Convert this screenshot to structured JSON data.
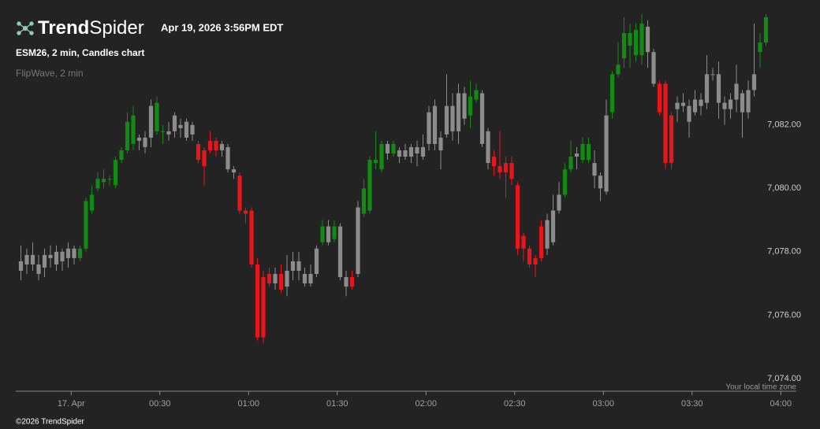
{
  "logo": [
    "Trend",
    "Spider"
  ],
  "timestamp": "Apr 19, 2026 3:56PM EDT",
  "chart_title": "ESM26, 2 min, Candles chart",
  "indicator": "FlipWave, 2 min",
  "timezone_note": "Your local time zone",
  "copyright": "©2026 TrendSpider",
  "chart_data": {
    "type": "candlestick",
    "x": [
      "23:42",
      "23:44",
      "23:46",
      "23:48",
      "23:50",
      "23:52",
      "23:54",
      "23:56",
      "23:58",
      "00:00",
      "00:02",
      "00:04",
      "00:06",
      "00:08",
      "00:10",
      "00:12",
      "00:14",
      "00:16",
      "00:18",
      "00:20",
      "00:22",
      "00:24",
      "00:26",
      "00:28",
      "00:30",
      "00:32",
      "00:34",
      "00:36",
      "00:38",
      "00:40",
      "00:42",
      "00:44",
      "00:46",
      "00:48",
      "00:50",
      "00:52",
      "00:54",
      "00:56",
      "00:58",
      "01:00",
      "01:02",
      "01:04",
      "01:06",
      "01:08",
      "01:10",
      "01:12",
      "01:14",
      "01:16",
      "01:18",
      "01:20",
      "01:22",
      "01:24",
      "01:26",
      "01:28",
      "01:30",
      "01:32",
      "01:34",
      "01:36",
      "01:38",
      "01:40",
      "01:42",
      "01:44",
      "01:46",
      "01:48",
      "01:50",
      "01:52",
      "01:54",
      "01:56",
      "01:58",
      "02:00",
      "02:02",
      "02:04",
      "02:06",
      "02:08",
      "02:10",
      "02:12",
      "02:14",
      "02:16",
      "02:18",
      "02:20",
      "02:22",
      "02:24",
      "02:26",
      "02:28",
      "02:30",
      "02:32",
      "02:34",
      "02:36",
      "02:38",
      "02:40",
      "02:42",
      "02:44",
      "02:46",
      "02:48",
      "02:50",
      "02:52",
      "02:54",
      "02:56",
      "02:58",
      "03:00",
      "03:02",
      "03:04",
      "03:06",
      "03:08",
      "03:10",
      "03:12",
      "03:14",
      "03:16",
      "03:18",
      "03:20",
      "03:22",
      "03:24",
      "03:26",
      "03:28",
      "03:30",
      "03:32",
      "03:34",
      "03:36",
      "03:38",
      "03:40",
      "03:42",
      "03:44",
      "03:46",
      "03:48",
      "03:50",
      "03:52",
      "03:54"
    ],
    "open": [
      7077.7,
      7077.6,
      7077.9,
      7077.6,
      7077.5,
      7077.9,
      7077.6,
      7078.0,
      7077.8,
      7078.1,
      7077.8,
      7078.1,
      7079.3,
      7080.0,
      7080.2,
      7080.3,
      7080.1,
      7080.9,
      7081.2,
      7081.4,
      7081.5,
      7081.6,
      7081.6,
      7081.8,
      7081.8,
      7081.8,
      7081.8,
      7081.9,
      7082.1,
      7082.0,
      7081.4,
      7081.2,
      7081.5,
      7081.5,
      7081.2,
      7081.3,
      7080.6,
      7080.4,
      7079.3,
      7079.3,
      7077.6,
      7077.2,
      7077.3,
      7077.0,
      7077.3,
      7076.9,
      7077.4,
      7077.7,
      7077.3,
      7077.0,
      7077.3,
      7078.3,
      7078.8,
      7078.4,
      7078.8,
      7077.2,
      7077.2,
      7077.3,
      7079.2,
      7079.3,
      7080.9,
      7080.6,
      7081.4,
      7081.1,
      7081.0,
      7081.0,
      7081.3,
      7081.3,
      7081.0,
      7081.4,
      7082.6,
      7081.2,
      7081.7,
      7082.6,
      7081.8,
      7083.0,
      7082.3,
      7082.8,
      7083.0,
      7081.8,
      7081.0,
      7080.7,
      7080.8,
      7080.8,
      7080.1,
      7078.5,
      7078.1,
      7077.8,
      7078.8,
      7078.1,
      7078.3,
      7079.3,
      7079.8,
      7080.6,
      7081.0,
      7080.9,
      7080.9,
      7080.8,
      7080.4,
      7079.9,
      7082.4,
      7083.6,
      7084.1,
      7084.9,
      7084.2,
      7084.2,
      7085.1,
      7084.3,
      7083.3,
      7083.3,
      7082.3,
      7082.5,
      7082.7,
      7082.6,
      7082.4,
      7082.8,
      7082.7,
      7083.6,
      7083.6,
      7082.7,
      7082.5,
      7082.8,
      7083.0,
      7082.4,
      7083.1,
      7084.3,
      7084.6
    ],
    "high": [
      7078.2,
      7078.1,
      7078.3,
      7077.9,
      7078.1,
      7078.2,
      7078.2,
      7078.1,
      7078.3,
      7078.2,
      7078.2,
      7079.7,
      7080.1,
      7080.5,
      7080.6,
      7080.4,
      7081.0,
      7081.3,
      7082.4,
      7082.6,
      7081.7,
      7081.8,
      7082.8,
      7082.9,
      7082.0,
      7082.1,
      7082.4,
      7082.2,
      7082.2,
      7082.1,
      7081.5,
      7081.3,
      7081.8,
      7081.6,
      7081.5,
      7081.4,
      7080.7,
      7080.5,
      7079.4,
      7079.4,
      7077.8,
      7077.4,
      7077.5,
      7077.5,
      7077.6,
      7077.9,
      7078.0,
      7078.0,
      7077.5,
      7077.6,
      7078.2,
      7079.0,
      7079.0,
      7079.0,
      7078.9,
      7077.4,
      7077.4,
      7079.6,
      7080.3,
      7081.0,
      7081.8,
      7081.5,
      7081.5,
      7081.5,
      7081.3,
      7081.4,
      7081.4,
      7081.5,
      7081.7,
      7082.6,
      7082.8,
      7081.8,
      7083.6,
      7083.0,
      7083.3,
      7083.2,
      7083.4,
      7083.3,
      7083.1,
      7081.9,
      7081.2,
      7081.8,
      7081.0,
      7081.0,
      7080.2,
      7078.6,
      7078.2,
      7077.9,
      7079.0,
      7079.2,
      7079.8,
      7080.2,
      7080.8,
      7081.5,
      7081.3,
      7081.6,
      7081.6,
      7081.2,
      7080.5,
      7082.8,
      7083.7,
      7084.6,
      7085.4,
      7085.2,
      7085.2,
      7085.5,
      7085.3,
      7084.4,
      7083.4,
      7083.4,
      7082.4,
      7082.9,
      7083.0,
      7082.8,
      7083.1,
      7083.0,
      7084.2,
      7083.8,
      7084.0,
      7082.9,
      7083.0,
      7083.9,
      7083.1,
      7083.4,
      7085.2,
      7084.9,
      7085.5
    ],
    "low": [
      7077.1,
      7077.3,
      7077.4,
      7077.1,
      7077.2,
      7077.5,
      7077.4,
      7077.4,
      7077.5,
      7077.6,
      7077.7,
      7078.0,
      7079.2,
      7079.9,
      7080.0,
      7080.1,
      7080.0,
      7080.8,
      7081.1,
      7081.2,
      7081.2,
      7081.1,
      7081.3,
      7081.7,
      7081.4,
      7081.5,
      7081.6,
      7081.6,
      7081.5,
      7081.5,
      7080.8,
      7080.1,
      7081.1,
      7081.0,
      7081.0,
      7080.5,
      7080.3,
      7079.2,
      7078.9,
      7077.5,
      7075.2,
      7075.1,
      7076.9,
      7076.8,
      7076.7,
      7076.6,
      7077.1,
      7077.1,
      7076.9,
      7076.9,
      7077.2,
      7078.2,
      7078.2,
      7078.3,
      7077.1,
      7076.6,
      7076.8,
      7077.2,
      7079.1,
      7079.2,
      7080.6,
      7080.5,
      7080.9,
      7081.0,
      7080.8,
      7080.9,
      7080.8,
      7080.7,
      7080.9,
      7081.2,
      7081.2,
      7080.6,
      7081.6,
      7081.5,
      7081.4,
      7082.0,
      7081.9,
      7082.7,
      7081.3,
      7080.6,
      7080.4,
      7080.3,
      7079.7,
      7080.1,
      7077.9,
      7077.7,
      7077.5,
      7077.2,
      7077.7,
      7077.9,
      7078.2,
      7079.2,
      7079.7,
      7080.5,
      7080.6,
      7080.8,
      7080.8,
      7080.0,
      7079.6,
      7079.8,
      7082.2,
      7083.5,
      7083.8,
      7083.8,
      7084.0,
      7083.9,
      7083.8,
      7083.2,
      7082.3,
      7080.6,
      7080.6,
      7082.1,
      7082.4,
      7081.6,
      7082.3,
      7082.3,
      7082.5,
      7083.4,
      7082.2,
      7082.0,
      7082.2,
      7082.4,
      7081.6,
      7082.2,
      7082.9,
      7083.8,
      7084.5
    ],
    "close": [
      7077.4,
      7077.9,
      7077.6,
      7077.3,
      7077.9,
      7077.8,
      7078.0,
      7077.7,
      7078.1,
      7077.8,
      7078.1,
      7079.6,
      7079.8,
      7080.3,
      7080.3,
      7080.3,
      7080.9,
      7081.2,
      7082.1,
      7082.3,
      7081.6,
      7081.3,
      7082.6,
      7082.7,
      7081.8,
      7081.7,
      7082.3,
      7082.0,
      7081.6,
      7081.7,
      7080.9,
      7080.7,
      7081.2,
      7081.2,
      7081.4,
      7080.6,
      7080.5,
      7079.3,
      7079.2,
      7077.6,
      7075.3,
      7075.3,
      7077.0,
      7077.3,
      7076.8,
      7077.4,
      7077.7,
      7077.4,
      7077.0,
      7077.3,
      7078.1,
      7078.8,
      7078.3,
      7078.8,
      7077.2,
      7076.9,
      7076.9,
      7079.4,
      7080.0,
      7080.9,
      7080.8,
      7081.4,
      7081.1,
      7081.4,
      7081.2,
      7081.2,
      7081.0,
      7081.1,
      7081.3,
      7082.4,
      7081.4,
      7081.6,
      7082.6,
      7081.8,
      7083.0,
      7082.2,
      7082.9,
      7083.1,
      7081.4,
      7080.8,
      7080.7,
      7080.5,
      7080.5,
      7080.3,
      7078.1,
      7078.1,
      7077.6,
      7077.6,
      7077.8,
      7079.0,
      7079.3,
      7079.8,
      7080.6,
      7081.0,
      7081.1,
      7081.4,
      7081.4,
      7080.4,
      7080.0,
      7082.3,
      7083.6,
      7083.9,
      7084.9,
      7084.5,
      7085.0,
      7085.2,
      7084.3,
      7083.3,
      7082.4,
      7080.8,
      7080.8,
      7082.7,
      7082.6,
      7082.1,
      7082.8,
      7082.6,
      7083.6,
      7083.6,
      7082.7,
      7082.5,
      7082.8,
      7083.3,
      7082.4,
      7083.1,
      7083.6,
      7084.6,
      7085.4
    ],
    "candle_colors": [
      "#8c8c8c",
      "#8c8c8c",
      "#8c8c8c",
      "#8c8c8c",
      "#8c8c8c",
      "#8c8c8c",
      "#8c8c8c",
      "#8c8c8c",
      "#8c8c8c",
      "#8c8c8c",
      "#138a13",
      "#138a13",
      "#138a13",
      "#138a13",
      "#138a13",
      "#138a13",
      "#138a13",
      "#138a13",
      "#138a13",
      "#138a13",
      "#8c8c8c",
      "#8c8c8c",
      "#8c8c8c",
      "#138a13",
      "#138a13",
      "#8c8c8c",
      "#8c8c8c",
      "#8c8c8c",
      "#8c8c8c",
      "#8c8c8c",
      "#e8161c",
      "#e8161c",
      "#e8161c",
      "#e8161c",
      "#8c8c8c",
      "#8c8c8c",
      "#8c8c8c",
      "#e8161c",
      "#e8161c",
      "#e8161c",
      "#e8161c",
      "#e8161c",
      "#e8161c",
      "#8c8c8c",
      "#e8161c",
      "#8c8c8c",
      "#8c8c8c",
      "#8c8c8c",
      "#8c8c8c",
      "#8c8c8c",
      "#8c8c8c",
      "#138a13",
      "#8c8c8c",
      "#138a13",
      "#8c8c8c",
      "#8c8c8c",
      "#e8161c",
      "#8c8c8c",
      "#138a13",
      "#138a13",
      "#138a13",
      "#138a13",
      "#8c8c8c",
      "#138a13",
      "#8c8c8c",
      "#8c8c8c",
      "#8c8c8c",
      "#8c8c8c",
      "#8c8c8c",
      "#8c8c8c",
      "#8c8c8c",
      "#8c8c8c",
      "#8c8c8c",
      "#8c8c8c",
      "#8c8c8c",
      "#8c8c8c",
      "#138a13",
      "#138a13",
      "#8c8c8c",
      "#8c8c8c",
      "#e8161c",
      "#e8161c",
      "#e8161c",
      "#e8161c",
      "#e8161c",
      "#e8161c",
      "#e8161c",
      "#e8161c",
      "#e8161c",
      "#8c8c8c",
      "#8c8c8c",
      "#8c8c8c",
      "#138a13",
      "#138a13",
      "#8c8c8c",
      "#138a13",
      "#138a13",
      "#8c8c8c",
      "#8c8c8c",
      "#8c8c8c",
      "#138a13",
      "#138a13",
      "#138a13",
      "#138a13",
      "#138a13",
      "#138a13",
      "#8c8c8c",
      "#8c8c8c",
      "#e8161c",
      "#e8161c",
      "#e8161c",
      "#8c8c8c",
      "#8c8c8c",
      "#8c8c8c",
      "#8c8c8c",
      "#8c8c8c",
      "#8c8c8c",
      "#8c8c8c",
      "#8c8c8c",
      "#8c8c8c",
      "#8c8c8c",
      "#8c8c8c",
      "#8c8c8c",
      "#8c8c8c",
      "#8c8c8c",
      "#138a13",
      "#138a13"
    ],
    "xlim": [
      "23:41",
      "04:05"
    ],
    "xticks": [
      {
        "value": "00:00",
        "label": "17. Apr"
      },
      "00:30",
      "01:00",
      "01:30",
      "02:00",
      "02:30",
      "03:00",
      "03:30",
      "04:00"
    ],
    "ylim": [
      7073.6,
      7085.57
    ],
    "yticks": [
      {
        "value": 7074,
        "label": "7,074.00"
      },
      {
        "value": 7076,
        "label": "7,076.00"
      },
      {
        "value": 7078,
        "label": "7,078.00"
      },
      {
        "value": 7080,
        "label": "7,080.00"
      },
      {
        "value": 7082,
        "label": "7,082.00"
      }
    ],
    "grid": false
  }
}
